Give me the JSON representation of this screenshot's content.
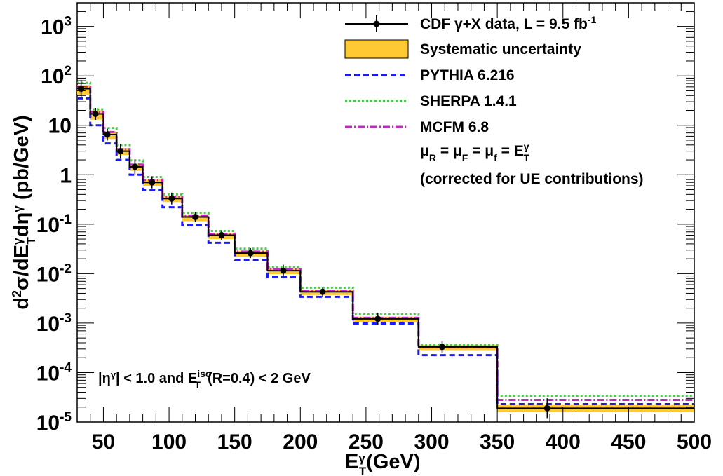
{
  "chart_data": {
    "type": "line",
    "xlabel": {
      "main": "E",
      "sup": "γ",
      "sub": "T",
      "unit": "(GeV)"
    },
    "ylabel": "d²σ/dE_T^γ dη^γ (pb/GeV)",
    "xlim": [
      30,
      500
    ],
    "ylim": [
      1e-05,
      3000
    ],
    "yscale": "log",
    "grid": false,
    "legend_position": "top-right",
    "x_ticks": [
      "50",
      "100",
      "150",
      "200",
      "250",
      "300",
      "350",
      "400",
      "450",
      "500"
    ],
    "y_ticks": [
      {
        "value": 1e-05,
        "base": "10",
        "exp": "-5"
      },
      {
        "value": 0.0001,
        "base": "10",
        "exp": "-4"
      },
      {
        "value": 0.001,
        "base": "10",
        "exp": "-3"
      },
      {
        "value": 0.01,
        "base": "10",
        "exp": "-2"
      },
      {
        "value": 0.1,
        "base": "10",
        "exp": "-1"
      },
      {
        "value": 1,
        "base": "1",
        "exp": ""
      },
      {
        "value": 10,
        "base": "10",
        "exp": ""
      },
      {
        "value": 100,
        "base": "10",
        "exp": "2"
      },
      {
        "value": 1000,
        "base": "10",
        "exp": "3"
      }
    ],
    "bin_edges": [
      30,
      40,
      50,
      60,
      70,
      80,
      95,
      110,
      130,
      150,
      175,
      200,
      240,
      290,
      350,
      500
    ],
    "bin_centers": [
      35,
      45,
      55,
      65,
      75,
      87,
      102,
      120,
      140,
      162,
      187,
      220,
      265,
      320,
      425
    ],
    "series": [
      {
        "name": "CDF γ+X data, L = 9.5 fb",
        "name_sup": "-1",
        "kind": "data",
        "color": "#000000",
        "x": [
          33,
          44,
          53,
          63,
          74,
          87,
          102,
          120,
          140,
          162,
          187,
          217,
          259,
          308,
          388
        ],
        "values": [
          55,
          17,
          6.5,
          3.0,
          1.45,
          0.7,
          0.33,
          0.14,
          0.06,
          0.026,
          0.0115,
          0.0043,
          0.00122,
          0.00033,
          1.9e-05
        ],
        "err_y": [
          0.18,
          0.12,
          0.12,
          0.15,
          0.15,
          0.12,
          0.12,
          0.1,
          0.1,
          0.1,
          0.12,
          0.1,
          0.12,
          0.12,
          0.2
        ]
      },
      {
        "name": "Systematic uncertainty",
        "kind": "band",
        "color": "#ffc933",
        "low": [
          42,
          13,
          5.3,
          2.5,
          1.2,
          0.6,
          0.28,
          0.115,
          0.05,
          0.022,
          0.0098,
          0.0037,
          0.00105,
          0.000285,
          1.6e-05
        ],
        "high": [
          65,
          20,
          7.5,
          3.5,
          1.7,
          0.8,
          0.37,
          0.155,
          0.067,
          0.029,
          0.0128,
          0.0047,
          0.00135,
          0.00036,
          2.2e-05
        ]
      },
      {
        "name": "PYTHIA 6.216",
        "kind": "hist",
        "color": "#1a1aff",
        "dash": "8,5",
        "values": [
          35,
          10,
          4.3,
          2.0,
          1.0,
          0.49,
          0.22,
          0.095,
          0.042,
          0.019,
          0.0085,
          0.0034,
          0.00098,
          0.000225,
          2.3e-05
        ]
      },
      {
        "name": "SHERPA 1.4.1",
        "kind": "hist",
        "color": "#44cc44",
        "dash": "3,3",
        "values": [
          72,
          21,
          8.8,
          4.0,
          1.95,
          0.9,
          0.4,
          0.17,
          0.073,
          0.032,
          0.0138,
          0.0052,
          0.0015,
          0.00036,
          3.4e-05
        ]
      },
      {
        "name": "MCFM 6.8",
        "kind": "hist",
        "color": "#cc22cc",
        "dash": "10,3,2,3",
        "values": [
          60,
          18.5,
          7.3,
          3.3,
          1.6,
          0.78,
          0.36,
          0.15,
          0.064,
          0.028,
          0.0123,
          0.0045,
          0.00128,
          0.00033,
          2.8e-05
        ]
      }
    ],
    "annotations": {
      "scale_line": {
        "parts": [
          {
            "main": "μ",
            "sub": "R"
          },
          {
            "main": " = "
          },
          {
            "main": "μ",
            "sub": "F"
          },
          {
            "main": " = "
          },
          {
            "main": "μ",
            "sub": "f"
          },
          {
            "main": " = "
          },
          {
            "main": "E",
            "sub": "T",
            "sup": "γ"
          }
        ]
      },
      "ue_note": "(corrected for UE contributions)",
      "cuts": {
        "eta_part": "|η",
        "eta_sup": "γ",
        "eta_rest": "| < 1.0 and  E",
        "et_sub": "T",
        "et_sup": "iso",
        "et_rest": "(R=0.4) < 2 GeV"
      }
    }
  }
}
